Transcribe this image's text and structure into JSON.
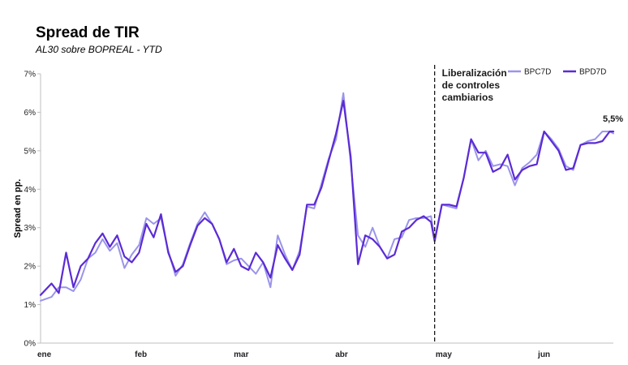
{
  "chart_data": {
    "type": "line",
    "title": "Spread de TIR",
    "subtitle": "AL30 sobre BOPREAL - YTD",
    "ylabel": "Spread en pp.",
    "xlabel": "",
    "ylim": [
      0,
      7
    ],
    "y_ticks": [
      "0%",
      "1%",
      "2%",
      "3%",
      "4%",
      "5%",
      "6%",
      "7%"
    ],
    "x_ticks": [
      "ene",
      "feb",
      "mar",
      "abr",
      "may",
      "jun"
    ],
    "grid": false,
    "legend": "top-right",
    "annotation": {
      "lines": [
        "Liberalización",
        "de controles",
        "cambiarios"
      ],
      "x": 108
    },
    "end_label": "5,5%",
    "series": [
      {
        "name": "BPC7D",
        "color": "#9a94ea",
        "x": [
          0,
          3,
          5,
          7,
          9,
          11,
          13,
          15,
          17,
          19,
          21,
          23,
          25,
          27,
          29,
          31,
          33,
          35,
          37,
          39,
          41,
          43,
          45,
          47,
          49,
          51,
          53,
          55,
          57,
          59,
          61,
          63,
          65,
          67,
          69,
          71,
          73,
          75,
          77,
          79,
          81,
          83,
          85,
          87,
          89,
          91,
          93,
          95,
          97,
          99,
          101,
          103,
          105,
          107,
          108,
          110,
          112,
          114,
          116,
          118,
          120,
          122,
          124,
          126,
          128,
          130,
          132,
          134,
          136,
          138,
          140,
          142,
          144,
          146,
          148,
          150,
          152,
          154,
          156,
          157
        ],
        "y": [
          1.1,
          1.2,
          1.45,
          1.45,
          1.35,
          1.65,
          2.2,
          2.35,
          2.7,
          2.4,
          2.6,
          1.95,
          2.3,
          2.55,
          3.25,
          3.1,
          3.25,
          2.4,
          1.75,
          2.05,
          2.6,
          3.1,
          3.4,
          3.1,
          2.7,
          2.05,
          2.15,
          2.2,
          2.0,
          1.8,
          2.1,
          1.45,
          2.8,
          2.3,
          1.9,
          2.4,
          3.55,
          3.5,
          4.15,
          4.8,
          5.3,
          6.5,
          4.7,
          2.8,
          2.5,
          3.0,
          2.5,
          2.2,
          2.7,
          2.75,
          3.2,
          3.25,
          3.25,
          3.3,
          2.7,
          3.6,
          3.55,
          3.5,
          4.3,
          5.3,
          4.75,
          5.0,
          4.6,
          4.65,
          4.6,
          4.1,
          4.55,
          4.7,
          4.9,
          5.5,
          5.3,
          5.05,
          4.6,
          4.5,
          5.15,
          5.25,
          5.3,
          5.5,
          5.5,
          5.45
        ]
      },
      {
        "name": "BPD7D",
        "color": "#5b2bd5",
        "x": [
          0,
          3,
          5,
          7,
          9,
          11,
          13,
          15,
          17,
          19,
          21,
          23,
          25,
          27,
          29,
          31,
          33,
          35,
          37,
          39,
          41,
          43,
          45,
          47,
          49,
          51,
          53,
          55,
          57,
          59,
          61,
          63,
          65,
          67,
          69,
          71,
          73,
          75,
          77,
          79,
          81,
          83,
          85,
          87,
          89,
          91,
          93,
          95,
          97,
          99,
          101,
          103,
          105,
          107,
          108,
          110,
          112,
          114,
          116,
          118,
          120,
          122,
          124,
          126,
          128,
          130,
          132,
          134,
          136,
          138,
          140,
          142,
          144,
          146,
          148,
          150,
          152,
          154,
          156,
          157
        ],
        "y": [
          1.25,
          1.55,
          1.3,
          2.35,
          1.45,
          2.0,
          2.2,
          2.6,
          2.85,
          2.5,
          2.8,
          2.25,
          2.1,
          2.35,
          3.1,
          2.75,
          3.35,
          2.35,
          1.85,
          2.0,
          2.55,
          3.05,
          3.25,
          3.1,
          2.7,
          2.1,
          2.45,
          2.0,
          1.9,
          2.35,
          2.1,
          1.7,
          2.55,
          2.2,
          1.9,
          2.3,
          3.6,
          3.6,
          4.05,
          4.75,
          5.45,
          6.3,
          4.85,
          2.05,
          2.8,
          2.7,
          2.5,
          2.2,
          2.3,
          2.9,
          3.0,
          3.2,
          3.3,
          3.15,
          2.65,
          3.6,
          3.6,
          3.55,
          4.3,
          5.3,
          4.95,
          4.95,
          4.45,
          4.55,
          4.9,
          4.25,
          4.5,
          4.6,
          4.65,
          5.5,
          5.25,
          5.0,
          4.5,
          4.55,
          5.15,
          5.2,
          5.2,
          5.25,
          5.5,
          5.5
        ]
      }
    ]
  }
}
